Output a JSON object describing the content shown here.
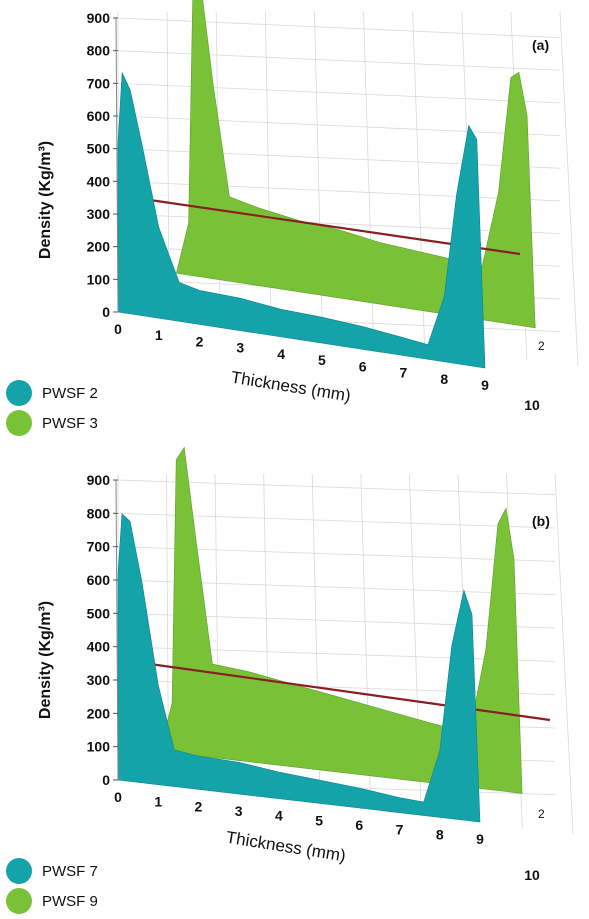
{
  "colors": {
    "teal": "#14A3A8",
    "green": "#79C237",
    "ref_line": "#8B1E22",
    "grid": "#D9D9D9"
  },
  "chart_data": [
    {
      "type": "area",
      "panel_label": "(a)",
      "xlabel": "Thickness (mm)",
      "ylabel": "Density (Kg/m³)",
      "ylim": [
        0,
        900
      ],
      "xlim": [
        0,
        10
      ],
      "y_ticks": [
        "0",
        "100",
        "200",
        "300",
        "400",
        "500",
        "600",
        "700",
        "800",
        "900"
      ],
      "x_ticks": [
        "0",
        "1",
        "2",
        "3",
        "4",
        "5",
        "6",
        "7",
        "8",
        "9",
        "10"
      ],
      "depth_tick": "2",
      "series": [
        {
          "name": "PWSF 2",
          "color": "#14A3A8",
          "x": [
            0.0,
            0.1,
            0.3,
            0.6,
            1.0,
            1.5,
            2.0,
            3.0,
            4.0,
            5.0,
            6.0,
            7.0,
            7.6,
            8.0,
            8.3,
            8.6,
            8.8,
            9.0
          ],
          "y": [
            520,
            740,
            690,
            520,
            280,
            120,
            105,
            100,
            85,
            80,
            70,
            55,
            45,
            200,
            520,
            740,
            700,
            0
          ]
        },
        {
          "name": "PWSF 3",
          "color": "#79C237",
          "x": [
            0.5,
            0.8,
            0.9,
            1.1,
            1.4,
            1.8,
            2.5,
            3.5,
            4.5,
            5.5,
            6.5,
            7.5,
            8.0,
            8.4,
            8.7,
            8.9,
            9.1,
            9.3
          ],
          "y": [
            0,
            160,
            850,
            900,
            600,
            260,
            240,
            220,
            210,
            190,
            180,
            170,
            165,
            400,
            760,
            780,
            650,
            0
          ]
        }
      ]
    },
    {
      "type": "area",
      "panel_label": "(b)",
      "xlabel": "Thickness (mm)",
      "ylabel": "Density (Kg/m³)",
      "ylim": [
        0,
        900
      ],
      "xlim": [
        0,
        10
      ],
      "y_ticks": [
        "0",
        "100",
        "200",
        "300",
        "400",
        "500",
        "600",
        "700",
        "800",
        "900"
      ],
      "x_ticks": [
        "0",
        "1",
        "2",
        "3",
        "4",
        "5",
        "6",
        "7",
        "8",
        "9",
        "10"
      ],
      "depth_tick": "2",
      "series": [
        {
          "name": "PWSF 7",
          "color": "#14A3A8",
          "x": [
            0.0,
            0.1,
            0.3,
            0.6,
            1.0,
            1.4,
            2.0,
            3.0,
            4.0,
            5.0,
            6.0,
            7.0,
            7.6,
            8.0,
            8.3,
            8.6,
            8.8,
            9.0
          ],
          "y": [
            620,
            800,
            780,
            600,
            300,
            110,
            100,
            95,
            80,
            70,
            60,
            45,
            40,
            200,
            520,
            690,
            620,
            0
          ]
        },
        {
          "name": "PWSF 9",
          "color": "#79C237",
          "x": [
            0.3,
            0.6,
            0.7,
            0.9,
            1.2,
            1.6,
            2.5,
            3.5,
            4.5,
            5.5,
            6.5,
            7.5,
            8.0,
            8.4,
            8.7,
            8.9,
            9.1,
            9.3
          ],
          "y": [
            0,
            150,
            880,
            920,
            640,
            280,
            270,
            250,
            230,
            210,
            190,
            170,
            165,
            420,
            800,
            850,
            700,
            0
          ]
        }
      ]
    }
  ]
}
